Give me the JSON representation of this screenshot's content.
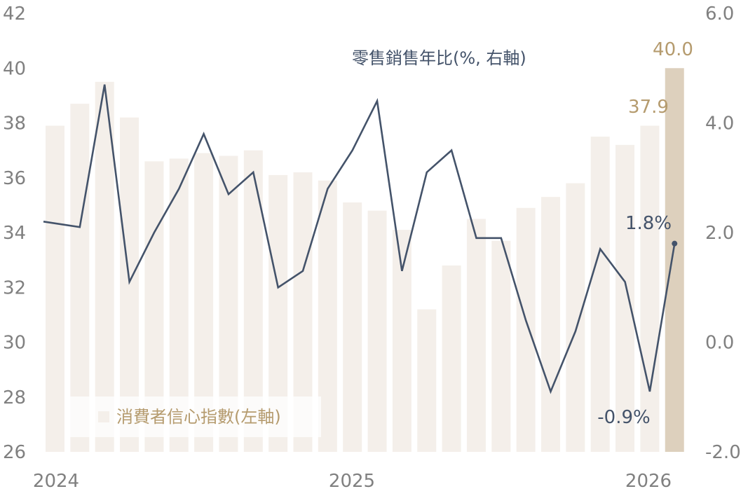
{
  "chart_data": {
    "type": "bar+line",
    "x_labels": [
      "2024",
      "2025",
      "2026"
    ],
    "left_axis": {
      "ticks": [
        42,
        40,
        38,
        36,
        34,
        32,
        30,
        28,
        26
      ],
      "ylim": [
        26,
        42
      ]
    },
    "right_axis": {
      "ticks": [
        "6.0",
        "4.0",
        "2.0",
        "0.0",
        "-2.0"
      ],
      "ylim": [
        -2,
        6
      ]
    },
    "bar_series": {
      "name": "消費者信心指數(左軸)",
      "values": [
        37.9,
        38.7,
        39.5,
        38.2,
        36.6,
        36.7,
        36.9,
        36.8,
        37.0,
        36.1,
        36.2,
        35.9,
        35.1,
        34.8,
        34.1,
        31.2,
        32.8,
        34.5,
        33.7,
        34.9,
        35.3,
        35.8,
        37.5,
        37.2,
        37.9,
        40.0
      ],
      "color": "#f4efea",
      "highlight_color": "#ddd0bd"
    },
    "line_series": {
      "name": "零售銷售年比(%, 右軸)",
      "values": [
        2.2,
        2.1,
        4.7,
        1.1,
        2.0,
        2.8,
        3.8,
        2.7,
        3.1,
        1.0,
        1.3,
        2.8,
        3.5,
        4.4,
        1.3,
        3.1,
        3.5,
        1.9,
        1.9,
        0.4,
        -0.9,
        0.2,
        1.7,
        1.1,
        -0.9,
        1.8
      ],
      "color": "#44536a"
    },
    "annotations": {
      "bar_last": "40.0",
      "bar_prev": "37.9",
      "line_last": "1.8%",
      "line_prev": "-0.9%"
    },
    "label_colors": {
      "bar": "#b59b6e",
      "line": "#44536a"
    }
  }
}
